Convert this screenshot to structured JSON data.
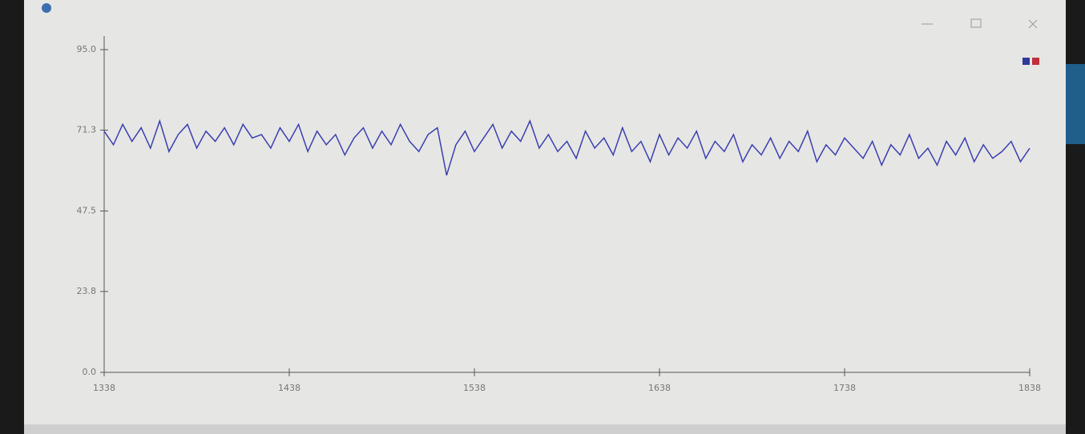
{
  "chart_data": {
    "type": "line",
    "x": [
      1338,
      1343,
      1348,
      1353,
      1358,
      1363,
      1368,
      1373,
      1378,
      1383,
      1388,
      1393,
      1398,
      1403,
      1408,
      1413,
      1418,
      1423,
      1428,
      1433,
      1438,
      1443,
      1448,
      1453,
      1458,
      1463,
      1468,
      1473,
      1478,
      1483,
      1488,
      1493,
      1498,
      1503,
      1508,
      1513,
      1518,
      1523,
      1528,
      1533,
      1538,
      1543,
      1548,
      1553,
      1558,
      1563,
      1568,
      1573,
      1578,
      1583,
      1588,
      1593,
      1598,
      1603,
      1608,
      1613,
      1618,
      1623,
      1628,
      1633,
      1638,
      1643,
      1648,
      1653,
      1658,
      1663,
      1668,
      1673,
      1678,
      1683,
      1688,
      1693,
      1698,
      1703,
      1708,
      1713,
      1718,
      1723,
      1728,
      1733,
      1738,
      1743,
      1748,
      1753,
      1758,
      1763,
      1768,
      1773,
      1778,
      1783,
      1788,
      1793,
      1798,
      1803,
      1808,
      1813,
      1818,
      1823,
      1828,
      1833,
      1838
    ],
    "series": [
      {
        "color": "#3b3fb0",
        "values": [
          71,
          67,
          73,
          68,
          72,
          66,
          74,
          65,
          70,
          73,
          66,
          71,
          68,
          72,
          67,
          73,
          69,
          70,
          66,
          72,
          68,
          73,
          65,
          71,
          67,
          70,
          64,
          69,
          72,
          66,
          71,
          67,
          73,
          68,
          65,
          70,
          72,
          58,
          67,
          71,
          65,
          69,
          73,
          66,
          71,
          68,
          74,
          66,
          70,
          65,
          68,
          63,
          71,
          66,
          69,
          64,
          72,
          65,
          68,
          62,
          70,
          64,
          69,
          66,
          71,
          63,
          68,
          65,
          70,
          62,
          67,
          64,
          69,
          63,
          68,
          65,
          71,
          62,
          67,
          64,
          69,
          66,
          63,
          68,
          61,
          67,
          64,
          70,
          63,
          66,
          61,
          68,
          64,
          69,
          62,
          67,
          63,
          65,
          68,
          62,
          66
        ]
      }
    ],
    "xlim": [
      1338,
      1838
    ],
    "xticks": [
      1338,
      1438,
      1538,
      1638,
      1738,
      1838
    ],
    "ylim": [
      0,
      95
    ],
    "yticks": [
      {
        "value": 0,
        "label": "0.0"
      },
      23.8,
      47.5,
      71.3,
      {
        "value": 95,
        "label": "95.0"
      }
    ]
  }
}
